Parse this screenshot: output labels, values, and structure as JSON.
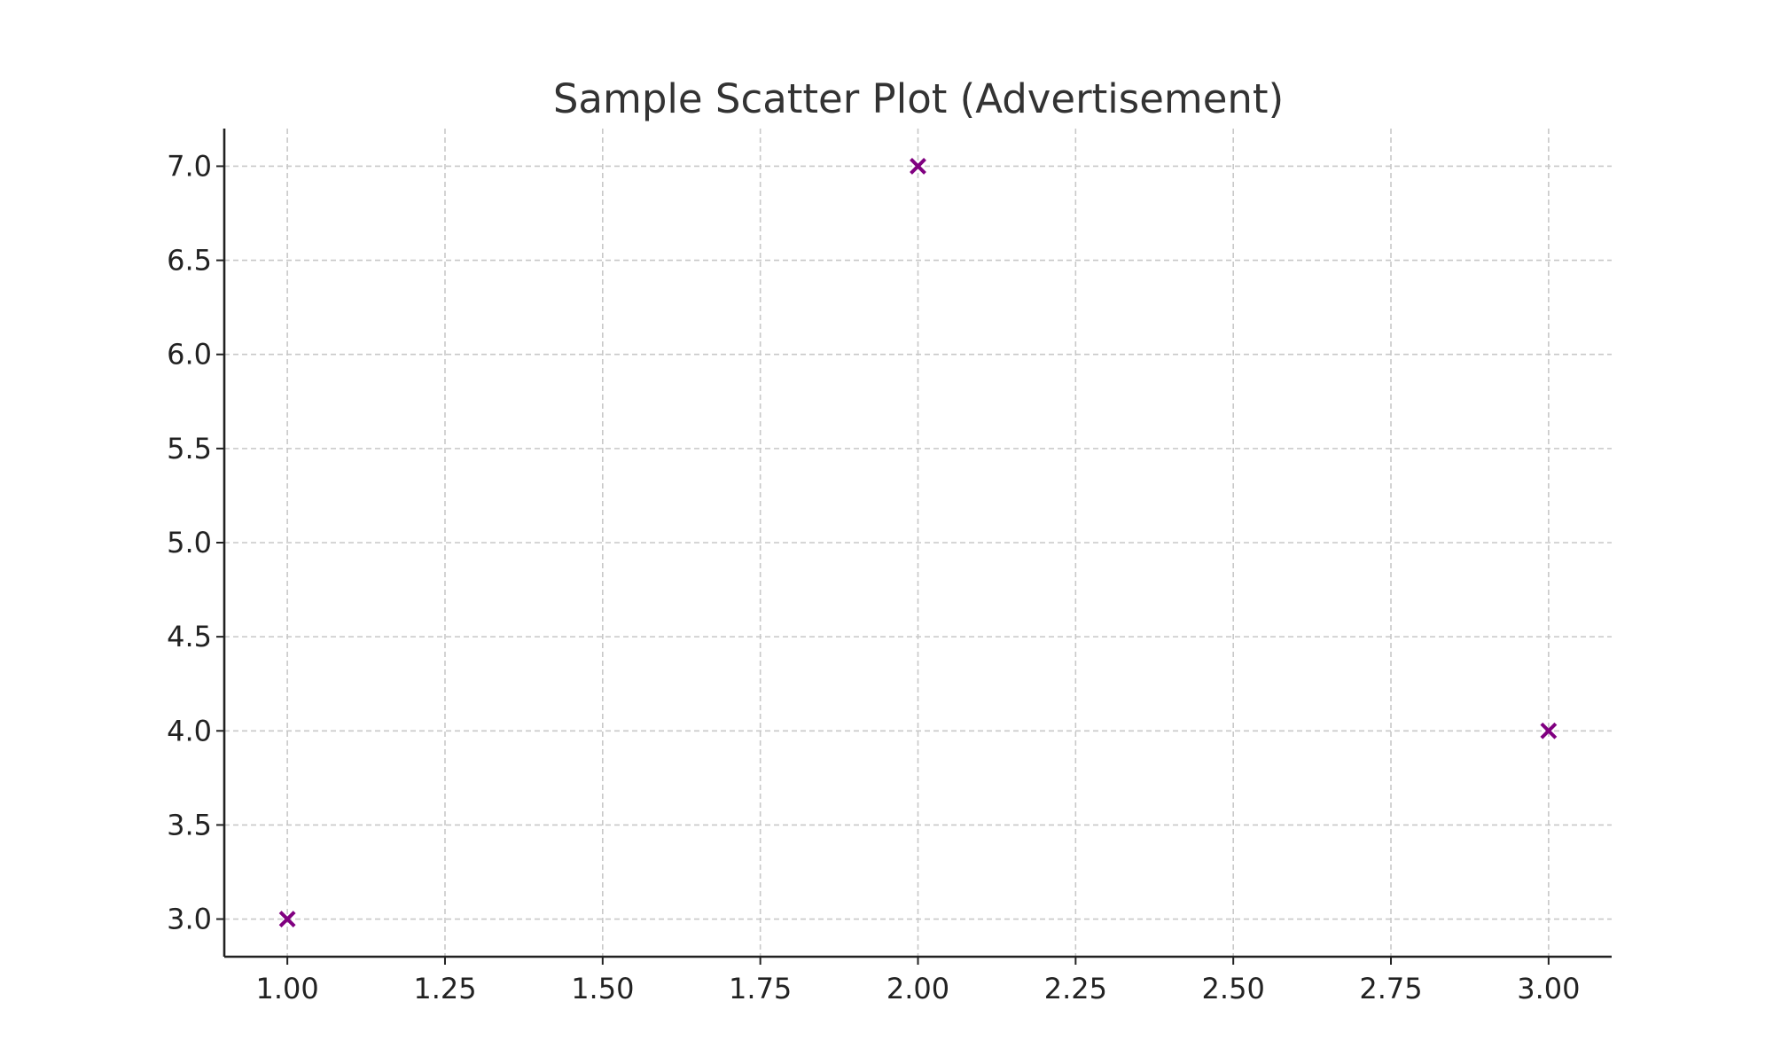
{
  "chart_data": {
    "type": "scatter",
    "title": "Sample Scatter Plot (Advertisement)",
    "xlabel": "",
    "ylabel": "",
    "xlim": [
      0.9,
      3.1
    ],
    "ylim": [
      2.8,
      7.2
    ],
    "x_ticks": [
      "1.00",
      "1.25",
      "1.50",
      "1.75",
      "2.00",
      "2.25",
      "2.50",
      "2.75",
      "3.00"
    ],
    "y_ticks": [
      "3.0",
      "3.5",
      "4.0",
      "4.5",
      "5.0",
      "5.5",
      "6.0",
      "6.5",
      "7.0"
    ],
    "grid": true,
    "marker": "x",
    "marker_color": "#800080",
    "series": [
      {
        "x": [
          1,
          2,
          3
        ],
        "y": [
          3,
          7,
          4
        ]
      }
    ]
  }
}
